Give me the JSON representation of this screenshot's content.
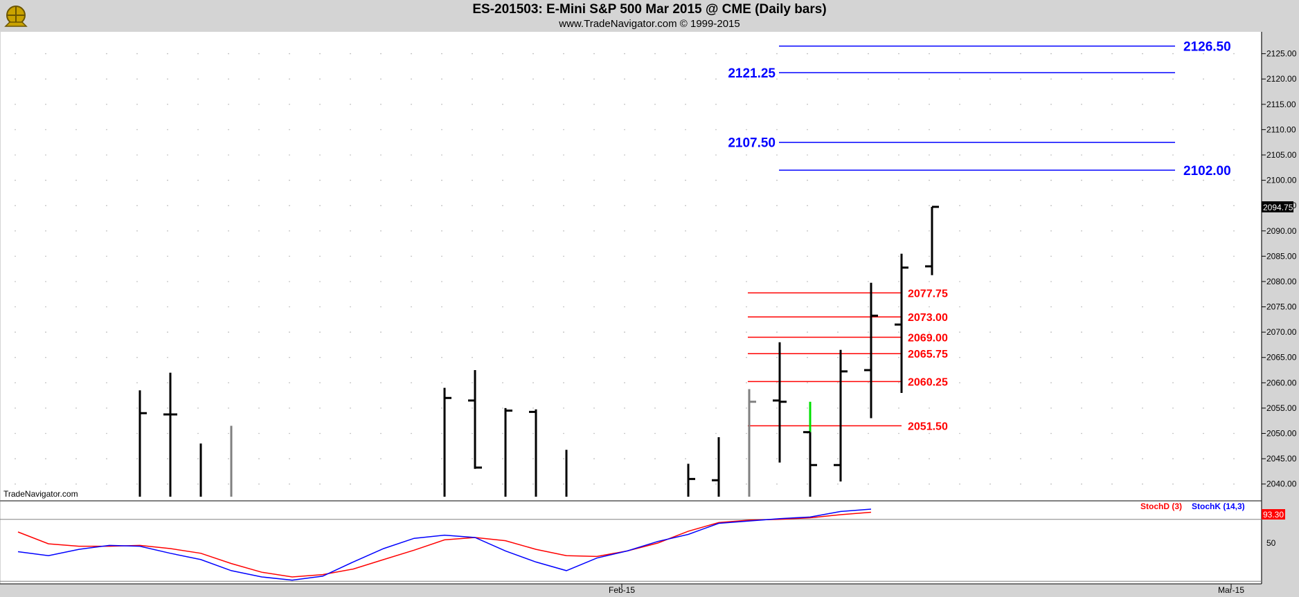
{
  "header": {
    "title": "ES-201503:  E-Mini S&P 500 Mar 2015 @ CME  (Daily bars)",
    "subtitle": "www.TradeNavigator.com © 1999-2015"
  },
  "watermark": "TradeNavigator.com",
  "colors": {
    "background": "#ffffff",
    "frame": "#d4d4d4",
    "bar": "#000000",
    "bar_gray": "#808080",
    "bar_green": "#00e000",
    "target_line": "#0000ff",
    "support_line": "#ff0000",
    "stochK": "#0000ff",
    "stochD": "#ff0000",
    "last_price_bg": "#000000",
    "stoch_value_bg": "#ff0000"
  },
  "chart_data": [
    {
      "type": "ohlc",
      "name": "price",
      "ylim": [
        2037.5,
        2128.5
      ],
      "y_ticks": [
        2040,
        2045,
        2050,
        2055,
        2060,
        2065,
        2070,
        2075,
        2080,
        2085,
        2090,
        2095,
        2100,
        2105,
        2110,
        2115,
        2120,
        2125
      ],
      "x_ticks": [
        {
          "label": "Feb-15",
          "index": 19
        },
        {
          "label": "Mar-15",
          "index": 39
        }
      ],
      "bars": [
        {
          "i": 2,
          "o": null,
          "h": 2058.5,
          "l": 2037.5,
          "c": 2054.0,
          "color": "black"
        },
        {
          "i": 3,
          "o": 2053.75,
          "h": 2062.0,
          "l": 2037.5,
          "c": 2053.75,
          "color": "black"
        },
        {
          "i": 4,
          "o": null,
          "h": 2048.0,
          "l": 2037.5,
          "c": null,
          "color": "black"
        },
        {
          "i": 5,
          "o": null,
          "h": 2051.5,
          "l": 2037.5,
          "c": null,
          "color": "gray"
        },
        {
          "i": 12,
          "o": null,
          "h": 2059.0,
          "l": 2037.5,
          "c": 2057.0,
          "color": "black"
        },
        {
          "i": 13,
          "o": 2056.5,
          "h": 2062.5,
          "l": 2043.0,
          "c": 2043.25,
          "color": "black"
        },
        {
          "i": 14,
          "o": null,
          "h": 2055.0,
          "l": 2037.5,
          "c": 2054.5,
          "color": "black"
        },
        {
          "i": 15,
          "o": 2054.25,
          "h": 2054.75,
          "l": 2037.5,
          "c": null,
          "color": "black"
        },
        {
          "i": 16,
          "o": null,
          "h": 2046.75,
          "l": 2037.5,
          "c": null,
          "color": "black"
        },
        {
          "i": 20,
          "o": null,
          "h": 2044.0,
          "l": 2037.5,
          "c": 2041.0,
          "color": "black"
        },
        {
          "i": 21,
          "o": 2040.75,
          "h": 2049.25,
          "l": 2037.5,
          "c": null,
          "color": "black"
        },
        {
          "i": 22,
          "o": null,
          "h": 2058.75,
          "l": 2037.5,
          "c": 2056.25,
          "color": "gray"
        },
        {
          "i": 23,
          "o": 2056.5,
          "h": 2068.0,
          "l": 2044.25,
          "c": 2056.25,
          "color": "black"
        },
        {
          "i": 24,
          "o": 2050.25,
          "h": 2056.25,
          "l": 2037.5,
          "c": 2043.75,
          "color": "black",
          "wick_color": "green"
        },
        {
          "i": 25,
          "o": 2043.75,
          "h": 2066.5,
          "l": 2040.5,
          "c": 2062.25,
          "color": "black"
        },
        {
          "i": 26,
          "o": 2062.5,
          "h": 2079.75,
          "l": 2053.0,
          "c": 2073.25,
          "color": "black"
        },
        {
          "i": 27,
          "o": 2071.5,
          "h": 2085.5,
          "l": 2058.0,
          "c": 2082.75,
          "color": "black"
        },
        {
          "i": 28,
          "o": 2083.0,
          "h": 2094.75,
          "l": 2081.25,
          "c": 2094.75,
          "color": "black"
        }
      ],
      "last_price": "2094.75",
      "target_lines": [
        {
          "label": "2126.50",
          "value": 2126.5,
          "label_side": "right"
        },
        {
          "label": "2121.25",
          "value": 2121.25,
          "label_side": "left"
        },
        {
          "label": "2107.50",
          "value": 2107.5,
          "label_side": "left"
        },
        {
          "label": "2102.00",
          "value": 2102.0,
          "label_side": "right"
        }
      ],
      "support_lines": [
        {
          "label": "2077.75",
          "value": 2077.75
        },
        {
          "label": "2073.00",
          "value": 2073.0
        },
        {
          "label": "2069.00",
          "value": 2069.0
        },
        {
          "label": "2065.75",
          "value": 2065.75
        },
        {
          "label": "2060.25",
          "value": 2060.25
        },
        {
          "label": "2051.50",
          "value": 2051.5
        }
      ]
    },
    {
      "type": "line",
      "name": "stochastic",
      "ylim": [
        0,
        100
      ],
      "y_ticks": [
        50
      ],
      "reference_line": 80,
      "series": [
        {
          "name": "StochD (3)",
          "color": "#ff0000",
          "x": [
            0,
            1,
            2,
            3,
            4,
            5,
            6,
            7,
            8,
            9,
            10,
            11,
            12,
            13,
            14,
            15,
            16,
            17,
            18,
            19,
            20,
            21,
            22,
            23,
            24,
            25,
            26,
            27,
            28
          ],
          "values": [
            64,
            49,
            46,
            46,
            47,
            43,
            37,
            24,
            13,
            7,
            10,
            17,
            29,
            41,
            54,
            57,
            53,
            42,
            34,
            33,
            40,
            50,
            65,
            76,
            79,
            80,
            82,
            86,
            89
          ]
        },
        {
          "name": "StochK (14,3)",
          "color": "#0000ff",
          "x": [
            0,
            1,
            2,
            3,
            4,
            5,
            6,
            7,
            8,
            9,
            10,
            11,
            12,
            13,
            14,
            15,
            16,
            17,
            18,
            19,
            20,
            21,
            22,
            23,
            24,
            25,
            26,
            27,
            28
          ],
          "values": [
            39,
            34,
            42,
            47,
            46,
            37,
            29,
            15,
            7,
            3,
            8,
            26,
            43,
            56,
            60,
            57,
            40,
            26,
            15,
            31,
            40,
            52,
            61,
            75,
            78,
            81,
            83,
            90,
            93
          ]
        }
      ],
      "stochK_value": "93.30"
    }
  ]
}
